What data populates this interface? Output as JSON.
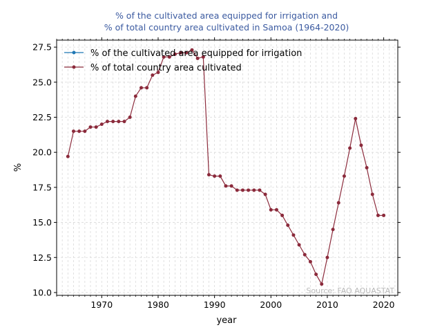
{
  "chart_data": {
    "type": "line",
    "title_lines": [
      "% of the cultivated area equipped for irrigation and",
      "% of total country area cultivated in Samoa (1964-2020)"
    ],
    "xlabel": "year",
    "ylabel": "%",
    "xlim": [
      1962,
      2022.5
    ],
    "ylim": [
      9.8,
      28.0
    ],
    "xticks": [
      1970,
      1980,
      1990,
      2000,
      2010,
      2020
    ],
    "xtick_labels": [
      "1970",
      "1980",
      "1990",
      "2000",
      "2010",
      "2020"
    ],
    "yticks": [
      10.0,
      12.5,
      15.0,
      17.5,
      20.0,
      22.5,
      25.0,
      27.5
    ],
    "ytick_labels": [
      "10.0",
      "12.5",
      "15.0",
      "17.5",
      "20.0",
      "22.5",
      "25.0",
      "27.5"
    ],
    "grid": true,
    "legend_position": "top-left",
    "source_note": "Source: FAO AQUASTAT",
    "series": [
      {
        "name": "% of the cultivated area equipped for irrigation",
        "color": "#1f77b4",
        "x": [],
        "y": []
      },
      {
        "name": "% of total country area cultivated",
        "color": "#8b2a3b",
        "x": [
          1964,
          1965,
          1966,
          1967,
          1968,
          1969,
          1970,
          1971,
          1972,
          1973,
          1974,
          1975,
          1976,
          1977,
          1978,
          1979,
          1980,
          1981,
          1982,
          1983,
          1984,
          1985,
          1986,
          1987,
          1988,
          1989,
          1990,
          1991,
          1992,
          1993,
          1994,
          1995,
          1996,
          1997,
          1998,
          1999,
          2000,
          2001,
          2002,
          2003,
          2004,
          2005,
          2006,
          2007,
          2008,
          2009,
          2010,
          2011,
          2012,
          2013,
          2014,
          2015,
          2016,
          2017,
          2018,
          2019,
          2020
        ],
        "y": [
          19.7,
          21.5,
          21.5,
          21.5,
          21.8,
          21.8,
          22.0,
          22.2,
          22.2,
          22.2,
          22.2,
          22.5,
          24.0,
          24.6,
          24.6,
          25.5,
          25.7,
          26.8,
          26.8,
          27.0,
          27.1,
          27.1,
          27.3,
          26.7,
          26.8,
          18.4,
          18.3,
          18.3,
          17.6,
          17.6,
          17.3,
          17.3,
          17.3,
          17.3,
          17.3,
          17.0,
          15.9,
          15.9,
          15.5,
          14.8,
          14.1,
          13.4,
          12.7,
          12.2,
          11.3,
          10.6,
          12.5,
          14.5,
          16.4,
          18.3,
          20.3,
          22.4,
          20.5,
          18.9,
          17.0,
          15.5,
          15.5
        ]
      }
    ]
  }
}
